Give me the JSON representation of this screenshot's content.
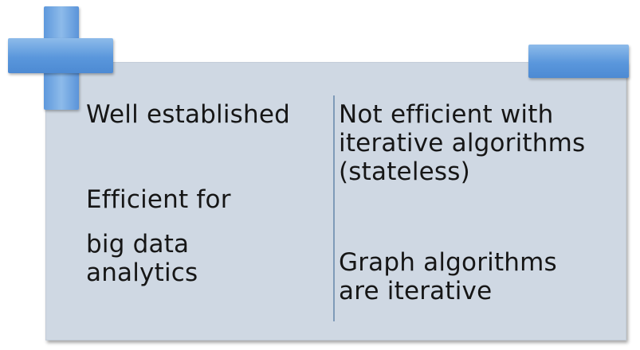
{
  "pros": {
    "icon": "plus-icon",
    "items": [
      "Well established",
      "Efficient for",
      "big data analytics"
    ]
  },
  "cons": {
    "icon": "minus-icon",
    "items": [
      "Not efficient with iterative algorithms (stateless)",
      "Graph algorithms are iterative"
    ]
  },
  "colors": {
    "panel": "#cfd8e3",
    "icon": "#5a97dc",
    "divider": "#7f9ab8",
    "text": "#161616"
  }
}
